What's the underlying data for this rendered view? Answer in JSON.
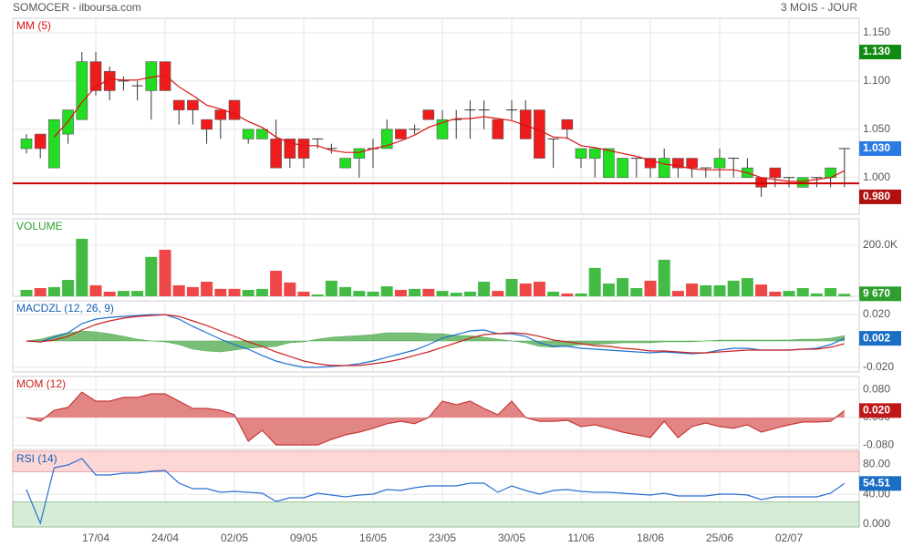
{
  "title": "SOMOCER - ilboursa.com",
  "subtitle": "3 MOIS - JOUR",
  "chart_data": [
    {
      "type": "candlestick",
      "title": "MM (5)",
      "title_color": "#dd1111",
      "categories": [
        null,
        null,
        null,
        null,
        null,
        "17/04",
        null,
        null,
        null,
        null,
        "24/04",
        null,
        null,
        null,
        null,
        "02/05",
        null,
        null,
        null,
        null,
        "09/05",
        null,
        null,
        null,
        null,
        "16/05",
        null,
        null,
        null,
        null,
        "23/05",
        null,
        null,
        null,
        null,
        "30/05",
        null,
        null,
        null,
        null,
        "11/06",
        null,
        null,
        null,
        null,
        "18/06",
        null,
        null,
        null,
        null,
        "25/06",
        null,
        null,
        null,
        null,
        "02/07",
        null,
        null,
        null,
        null
      ],
      "open": [
        1.03,
        1.045,
        1.01,
        1.045,
        1.06,
        1.12,
        1.11,
        1.1,
        1.095,
        1.09,
        1.12,
        1.08,
        1.08,
        1.06,
        1.07,
        1.08,
        1.04,
        1.04,
        1.04,
        1.04,
        1.04,
        1.04,
        1.03,
        1.01,
        1.02,
        1.03,
        1.03,
        1.05,
        1.05,
        1.07,
        1.04,
        1.06,
        1.07,
        1.07,
        1.06,
        1.07,
        1.07,
        1.07,
        1.04,
        1.06,
        1.02,
        1.02,
        1.0,
        1.0,
        1.02,
        1.02,
        1.0,
        1.02,
        1.02,
        1.01,
        1.01,
        1.02,
        1.0,
        1.0,
        1.01,
        1.0,
        0.99,
        1.0,
        1.0,
        1.03
      ],
      "high": [
        1.045,
        1.045,
        1.06,
        1.07,
        1.13,
        1.13,
        1.115,
        1.105,
        1.1,
        1.12,
        1.12,
        1.08,
        1.08,
        1.06,
        1.07,
        1.08,
        1.05,
        1.05,
        1.06,
        1.04,
        1.04,
        1.04,
        1.035,
        1.02,
        1.03,
        1.04,
        1.06,
        1.05,
        1.055,
        1.07,
        1.07,
        1.07,
        1.08,
        1.08,
        1.06,
        1.08,
        1.08,
        1.07,
        1.04,
        1.06,
        1.03,
        1.03,
        1.03,
        1.02,
        1.02,
        1.02,
        1.03,
        1.02,
        1.02,
        1.01,
        1.03,
        1.02,
        1.02,
        1.0,
        1.01,
        1.0,
        1.0,
        1.0,
        1.01,
        1.03
      ],
      "low": [
        1.025,
        1.02,
        1.01,
        1.035,
        1.06,
        1.085,
        1.08,
        1.09,
        1.08,
        1.06,
        1.09,
        1.055,
        1.055,
        1.035,
        1.04,
        1.06,
        1.035,
        1.04,
        1.01,
        1.01,
        1.01,
        1.03,
        1.025,
        1.01,
        1.0,
        1.01,
        1.03,
        1.04,
        1.045,
        1.06,
        1.04,
        1.04,
        1.04,
        1.05,
        1.04,
        1.06,
        1.04,
        1.02,
        1.01,
        1.04,
        1.01,
        1.0,
        1.0,
        1.0,
        1.0,
        1.0,
        1.0,
        1.0,
        1.0,
        1.0,
        1.0,
        1.0,
        1.0,
        0.98,
        0.99,
        0.99,
        0.99,
        0.99,
        0.99,
        0.99
      ],
      "close": [
        1.04,
        1.03,
        1.06,
        1.07,
        1.12,
        1.09,
        1.09,
        1.1,
        1.095,
        1.12,
        1.09,
        1.07,
        1.07,
        1.05,
        1.06,
        1.06,
        1.05,
        1.05,
        1.01,
        1.02,
        1.02,
        1.04,
        1.03,
        1.02,
        1.03,
        1.03,
        1.05,
        1.04,
        1.05,
        1.06,
        1.06,
        1.06,
        1.07,
        1.07,
        1.04,
        1.07,
        1.04,
        1.02,
        1.04,
        1.05,
        1.03,
        1.03,
        1.03,
        1.02,
        1.02,
        1.01,
        1.02,
        1.01,
        1.01,
        1.01,
        1.02,
        1.02,
        1.01,
        0.99,
        1.0,
        1.0,
        1.0,
        1.0,
        1.01,
        1.03
      ],
      "up_color": "#22dd22",
      "down_color": "#ee1c1c",
      "ma": {
        "color": "#dd1111",
        "values": [
          null,
          null,
          1.042,
          1.058,
          1.078,
          1.094,
          1.102,
          1.101,
          1.101,
          1.104,
          1.106,
          1.094,
          1.085,
          1.075,
          1.071,
          1.066,
          1.058,
          1.052,
          1.042,
          1.036,
          1.033,
          1.033,
          1.028,
          1.026,
          1.026,
          1.03,
          1.033,
          1.038,
          1.044,
          1.052,
          1.057,
          1.061,
          1.061,
          1.063,
          1.061,
          1.059,
          1.054,
          1.049,
          1.042,
          1.041,
          1.033,
          1.031,
          1.028,
          1.025,
          1.022,
          1.018,
          1.014,
          1.012,
          1.009,
          1.008,
          1.008,
          1.008,
          1.005,
          1.0,
          0.998,
          0.996,
          0.996,
          0.998,
          1.0,
          1.007
        ]
      },
      "ref_line": {
        "value": 0.994,
        "color": "#cc0000"
      },
      "ylim": [
        0.962,
        1.165
      ],
      "yticks": [
        {
          "value": 1.15,
          "label": "1.150"
        },
        {
          "value": 1.1,
          "label": "1.100"
        },
        {
          "value": 1.05,
          "label": "1.050"
        },
        {
          "value": 1.0,
          "label": "1.000"
        }
      ],
      "badges": [
        {
          "value": 1.13,
          "label": "1.130",
          "color": "#138a13"
        },
        {
          "value": 1.03,
          "label": "1.030",
          "color": "#2a7be4"
        },
        {
          "value": 0.98,
          "label": "0.980",
          "color": "#b01010"
        }
      ],
      "grid": true
    },
    {
      "type": "volume",
      "title": "VOLUME",
      "title_color": "#2e9e2e",
      "values": [
        25000,
        32000,
        36000,
        64000,
        225000,
        43000,
        18000,
        21000,
        21000,
        154000,
        182000,
        43000,
        36000,
        57000,
        29000,
        29000,
        25000,
        29000,
        100000,
        54000,
        18000,
        7000,
        61000,
        36000,
        21000,
        18000,
        39000,
        25000,
        29000,
        29000,
        21000,
        14000,
        18000,
        57000,
        21000,
        68000,
        50000,
        57000,
        18000,
        11000,
        11000,
        111000,
        50000,
        71000,
        32000,
        61000,
        143000,
        21000,
        50000,
        43000,
        43000,
        61000,
        71000,
        46000,
        18000,
        21000,
        32000,
        11000,
        32000,
        9670
      ],
      "up_color": "#44bb44",
      "down_color": "#ee4747",
      "ylim": [
        0,
        303000
      ],
      "yticks": [
        {
          "value": 200000,
          "label": "200.0K"
        }
      ],
      "badges": [
        {
          "value": 9670,
          "label": "9 670",
          "color": "#2e9e2e"
        }
      ],
      "grid": true
    },
    {
      "type": "macd",
      "title": "MACDZL (12, 26, 9)",
      "title_color": "#1a5fb4",
      "histogram": {
        "color": "#4aa84a",
        "values": [
          0,
          0.0014,
          0.0041,
          0.0062,
          0.0076,
          0.0069,
          0.0055,
          0.0035,
          0.0014,
          0,
          -0.0007,
          -0.0028,
          -0.0062,
          -0.0076,
          -0.0083,
          -0.0069,
          -0.0055,
          -0.0048,
          -0.0041,
          -0.0014,
          -0.0007,
          0.0014,
          0.0028,
          0.0035,
          0.0041,
          0.0048,
          0.0062,
          0.0062,
          0.0062,
          0.0055,
          0.0055,
          0.0041,
          0.0041,
          0.0028,
          0.0014,
          0,
          -0.0014,
          -0.0041,
          -0.0048,
          -0.0041,
          -0.0028,
          -0.0028,
          -0.0021,
          -0.0014,
          -0.0014,
          -0.0014,
          -0.0007,
          -0.0007,
          -0.0007,
          0,
          0.0007,
          0.0007,
          0.0007,
          0.0007,
          0.0007,
          0.0007,
          0.0014,
          0.0014,
          0.0021,
          0.0041
        ]
      },
      "series": [
        {
          "color": "#1f6fd0",
          "values": [
            0,
            -0.0007,
            0.0028,
            0.0062,
            0.0131,
            0.0166,
            0.0179,
            0.0186,
            0.0193,
            0.02,
            0.02,
            0.0166,
            0.011,
            0.0062,
            0.0014,
            -0.0028,
            -0.0062,
            -0.011,
            -0.0152,
            -0.0179,
            -0.02,
            -0.02,
            -0.0193,
            -0.0186,
            -0.0173,
            -0.0152,
            -0.0124,
            -0.0097,
            -0.0069,
            -0.0028,
            0.0021,
            0.0048,
            0.0076,
            0.0083,
            0.0055,
            0.0055,
            0.0035,
            -0.0014,
            -0.0041,
            -0.0041,
            -0.0055,
            -0.0062,
            -0.0069,
            -0.0076,
            -0.0083,
            -0.009,
            -0.0083,
            -0.009,
            -0.0097,
            -0.009,
            -0.0069,
            -0.0055,
            -0.0055,
            -0.0069,
            -0.0069,
            -0.0069,
            -0.0062,
            -0.0055,
            -0.0028,
            0.002
          ]
        },
        {
          "color": "#cc2222",
          "values": [
            0,
            -0.0007,
            0.0007,
            0.0035,
            0.0083,
            0.0124,
            0.0152,
            0.0173,
            0.0186,
            0.0193,
            0.02,
            0.0186,
            0.0152,
            0.0117,
            0.0076,
            0.0035,
            -0.0007,
            -0.0041,
            -0.0083,
            -0.0117,
            -0.0152,
            -0.0173,
            -0.0186,
            -0.0186,
            -0.0186,
            -0.0173,
            -0.0159,
            -0.0138,
            -0.011,
            -0.0083,
            -0.0048,
            -0.0014,
            0.0021,
            0.0048,
            0.0055,
            0.0062,
            0.0055,
            0.0035,
            0.0007,
            -0.0007,
            -0.0021,
            -0.0035,
            -0.0041,
            -0.0055,
            -0.0062,
            -0.0076,
            -0.0076,
            -0.0083,
            -0.009,
            -0.009,
            -0.0083,
            -0.0076,
            -0.0069,
            -0.0069,
            -0.0069,
            -0.0069,
            -0.0062,
            -0.0062,
            -0.0048,
            -0.0021
          ]
        }
      ],
      "ylim": [
        -0.0235,
        0.0304
      ],
      "yticks": [
        {
          "value": 0.02,
          "label": "0.020"
        },
        {
          "value": -0.02,
          "label": "-0.020"
        }
      ],
      "badges": [
        {
          "value": 0.002,
          "label": "0.002",
          "color": "#1a6fc4"
        }
      ],
      "grid": true
    },
    {
      "type": "momentum",
      "title": "MOM (12)",
      "title_color": "#cc2222",
      "color": "#c83a3a",
      "fill": "#dd7070",
      "values": [
        0,
        -0.011,
        0.021,
        0.029,
        0.073,
        0.047,
        0.047,
        0.058,
        0.058,
        0.068,
        0.068,
        0.047,
        0.026,
        0.026,
        0.021,
        0.008,
        -0.068,
        -0.037,
        -0.079,
        -0.079,
        -0.079,
        -0.079,
        -0.063,
        -0.05,
        -0.042,
        -0.031,
        -0.018,
        -0.011,
        -0.018,
        0,
        0.047,
        0.037,
        0.047,
        0.026,
        0.008,
        0.047,
        0,
        -0.011,
        -0.011,
        -0.008,
        -0.026,
        -0.021,
        -0.031,
        -0.042,
        -0.05,
        -0.058,
        -0.011,
        -0.058,
        -0.026,
        -0.016,
        -0.026,
        -0.031,
        -0.021,
        -0.042,
        -0.031,
        -0.021,
        -0.013,
        -0.013,
        -0.011,
        0.02
      ],
      "ylim": [
        -0.092,
        0.118
      ],
      "yticks": [
        {
          "value": 0.08,
          "label": "0.080"
        },
        {
          "value": 0,
          "label": "0.000"
        },
        {
          "value": -0.08,
          "label": "-0.080"
        }
      ],
      "badges": [
        {
          "value": 0.02,
          "label": "0.020",
          "color": "#c01818"
        }
      ],
      "grid": true
    },
    {
      "type": "rsi",
      "title": "RSI (14)",
      "title_color": "#1a5fb4",
      "color": "#2a6fd0",
      "values": [
        46.3,
        1,
        75.6,
        79.3,
        87.8,
        65.9,
        65.9,
        68.3,
        68.3,
        70.7,
        72.0,
        54.9,
        47.6,
        47.6,
        42.7,
        43.9,
        42.7,
        41.5,
        30.5,
        35.4,
        35.4,
        41.5,
        39.0,
        36.6,
        39.0,
        40.2,
        46.3,
        45.1,
        48.8,
        51.2,
        51.2,
        51.2,
        54.9,
        54.9,
        42.7,
        51.2,
        45.1,
        40.2,
        45.1,
        46.3,
        43.9,
        42.7,
        42.7,
        41.5,
        40.2,
        39.0,
        41.5,
        37.8,
        37.8,
        37.8,
        40.2,
        40.2,
        39.0,
        32.9,
        36.6,
        36.6,
        36.6,
        36.6,
        41.5,
        54.51
      ],
      "overbought": 70,
      "overbought_color": "#fdd6d6",
      "oversold": 30,
      "oversold_color": "#d6ecd6",
      "ylim": [
        -3.7,
        97.6
      ],
      "yticks": [
        {
          "value": 80,
          "label": "80.00"
        },
        {
          "value": 40,
          "label": "40.00"
        },
        {
          "value": 0,
          "label": "0.000"
        }
      ],
      "badges": [
        {
          "value": 54.51,
          "label": "54.51",
          "color": "#1a6fc4"
        }
      ],
      "grid": true
    }
  ]
}
